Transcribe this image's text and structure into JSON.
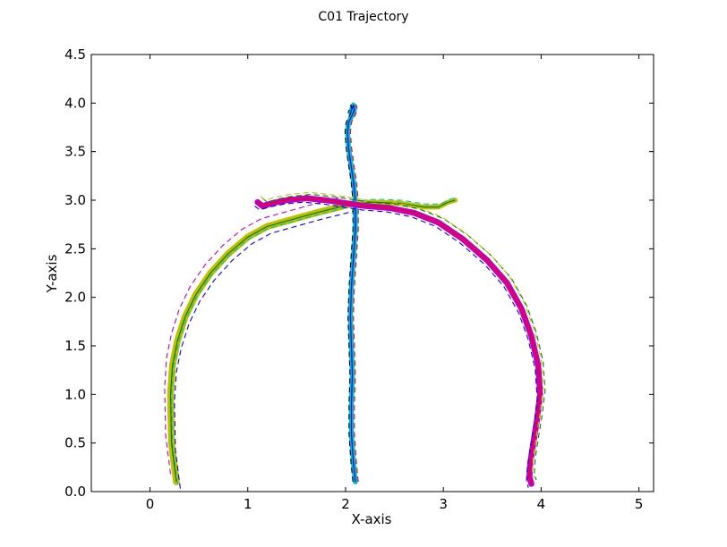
{
  "chart_data": {
    "type": "line",
    "title": "C01 Trajectory",
    "xlabel": "X-axis",
    "ylabel": "Y-axis",
    "xlim": [
      -0.6,
      5.15
    ],
    "ylim": [
      0,
      4.5
    ],
    "xticks": [
      0,
      1,
      2,
      3,
      4,
      5
    ],
    "xtick_labels": [
      "0",
      "1",
      "2",
      "3",
      "4",
      "5"
    ],
    "yticks": [
      0.0,
      0.5,
      1.0,
      1.5,
      2.0,
      2.5,
      3.0,
      3.5,
      4.0,
      4.5
    ],
    "ytick_labels": [
      "0.0",
      "0.5",
      "1.0",
      "1.5",
      "2.0",
      "2.5",
      "3.0",
      "3.5",
      "4.0",
      "4.5"
    ],
    "grid": false,
    "series": [
      {
        "color": "#bfbf00",
        "band_width": 0.07,
        "mean_color": "#008000",
        "x": [
          0.27,
          0.22,
          0.21,
          0.23,
          0.28,
          0.36,
          0.47,
          0.62,
          0.8,
          1.0,
          1.2,
          1.45,
          1.7,
          1.9,
          2.05
        ],
        "y": [
          0.1,
          0.5,
          1.0,
          1.3,
          1.55,
          1.8,
          2.03,
          2.25,
          2.45,
          2.62,
          2.73,
          2.8,
          2.87,
          2.92,
          2.96
        ],
        "dashed": [
          {
            "color": "#0000ff",
            "dx": 0.04,
            "dy": -0.07
          },
          {
            "color": "#bf00bf",
            "dx": -0.06,
            "dy": 0.08
          },
          {
            "color": "#00bfbf",
            "dx": 0.01,
            "dy": -0.02
          }
        ]
      },
      {
        "color": "#00bfbf",
        "band_width": 0.05,
        "mean_color": "#0000ff",
        "x": [
          2.1,
          2.08,
          2.06,
          2.06,
          2.07,
          2.06,
          2.05,
          2.06,
          2.08,
          2.1,
          2.1,
          2.08,
          2.05,
          2.03,
          2.02,
          2.03,
          2.07,
          2.09,
          2.08,
          2.05
        ],
        "y": [
          0.1,
          0.3,
          0.6,
          0.9,
          1.2,
          1.5,
          1.8,
          2.1,
          2.4,
          2.7,
          3.0,
          3.2,
          3.4,
          3.55,
          3.7,
          3.8,
          3.88,
          3.93,
          3.98,
          3.9
        ],
        "dashed": [
          {
            "color": "#000000",
            "dx": -0.025,
            "dy": 0
          },
          {
            "color": "#ff0000",
            "dx": 0.03,
            "dy": 0
          }
        ]
      },
      {
        "color": "#bfbf00",
        "band_width": 0.05,
        "mean_color": "#008000",
        "x": [
          2.05,
          2.3,
          2.55,
          2.8,
          2.95,
          3.05,
          3.12
        ],
        "y": [
          2.96,
          2.98,
          2.97,
          2.93,
          2.93,
          2.98,
          3.0
        ],
        "dashed": [
          {
            "color": "#00bfbf",
            "dx": 0.02,
            "dy": 0.03
          }
        ]
      },
      {
        "color": "#bf00bf",
        "band_width": 0.06,
        "mean_color": "#ff0000",
        "x": [
          1.1,
          1.15,
          1.25,
          1.4,
          1.6,
          1.8,
          2.0,
          2.2,
          2.45,
          2.7,
          2.95,
          3.2,
          3.45,
          3.65,
          3.8,
          3.9,
          3.97,
          3.99,
          3.96,
          3.92,
          3.89,
          3.88,
          3.9
        ],
        "y": [
          2.98,
          2.94,
          2.97,
          3.0,
          3.02,
          3.0,
          2.97,
          2.94,
          2.92,
          2.87,
          2.77,
          2.6,
          2.38,
          2.15,
          1.88,
          1.6,
          1.3,
          1.0,
          0.75,
          0.5,
          0.3,
          0.15,
          0.08
        ],
        "dashed": [
          {
            "color": "#008000",
            "dx": 0.05,
            "dy": 0.04
          },
          {
            "color": "#bfbf00",
            "dx": 0.03,
            "dy": 0.06
          },
          {
            "color": "#0000ff",
            "dx": -0.03,
            "dy": -0.04
          }
        ]
      }
    ]
  }
}
